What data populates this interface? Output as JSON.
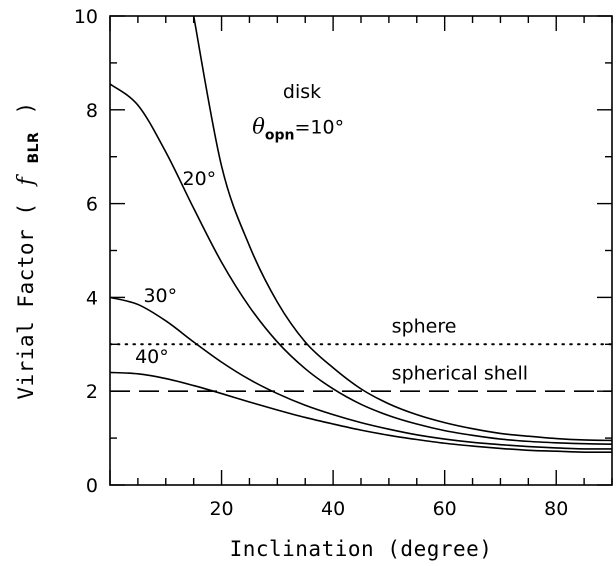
{
  "chart_data": {
    "type": "line",
    "xlabel": "Inclination (degree)",
    "ylabel": {
      "prefix": "Virial Factor (",
      "symbol": "f",
      "subscript": "BLR",
      "suffix": ")"
    },
    "xlim": [
      0,
      90
    ],
    "ylim": [
      0,
      10
    ],
    "xticks": [
      20,
      40,
      60,
      80
    ],
    "yticks": [
      0,
      2,
      4,
      6,
      8,
      10
    ],
    "grid": false,
    "series": [
      {
        "name": "disk",
        "opening_angle_deg": 10,
        "style": "solid",
        "x": [
          15,
          20,
          25,
          30,
          35,
          40,
          45,
          50,
          55,
          60,
          65,
          70,
          75,
          80,
          85,
          90
        ],
        "y": [
          10.0,
          6.8,
          5.1,
          3.9,
          3.05,
          2.5,
          2.05,
          1.73,
          1.5,
          1.33,
          1.2,
          1.1,
          1.04,
          0.99,
          0.96,
          0.95
        ]
      },
      {
        "name": "20°",
        "opening_angle_deg": 20,
        "style": "solid",
        "x": [
          0,
          5,
          10,
          15,
          20,
          25,
          30,
          35,
          40,
          45,
          50,
          55,
          60,
          65,
          70,
          75,
          80,
          85,
          90
        ],
        "y": [
          8.55,
          8.1,
          7.1,
          5.9,
          4.75,
          3.8,
          3.05,
          2.48,
          2.05,
          1.72,
          1.48,
          1.3,
          1.16,
          1.06,
          0.98,
          0.93,
          0.9,
          0.88,
          0.87
        ]
      },
      {
        "name": "30°",
        "opening_angle_deg": 30,
        "style": "solid",
        "x": [
          0,
          5,
          10,
          15,
          20,
          25,
          30,
          35,
          40,
          45,
          50,
          55,
          60,
          65,
          70,
          75,
          80,
          85,
          90
        ],
        "y": [
          4.0,
          3.85,
          3.5,
          3.05,
          2.62,
          2.25,
          1.95,
          1.7,
          1.5,
          1.33,
          1.19,
          1.07,
          0.98,
          0.91,
          0.86,
          0.82,
          0.79,
          0.77,
          0.77
        ]
      },
      {
        "name": "40°",
        "opening_angle_deg": 40,
        "style": "solid",
        "x": [
          0,
          5,
          10,
          15,
          20,
          25,
          30,
          35,
          40,
          45,
          50,
          55,
          60,
          65,
          70,
          75,
          80,
          85,
          90
        ],
        "y": [
          2.4,
          2.37,
          2.27,
          2.12,
          1.95,
          1.77,
          1.6,
          1.44,
          1.3,
          1.17,
          1.06,
          0.97,
          0.89,
          0.83,
          0.78,
          0.74,
          0.72,
          0.7,
          0.7
        ]
      },
      {
        "name": "sphere",
        "style": "dotted",
        "x": [
          0,
          90
        ],
        "y": [
          3,
          3
        ]
      },
      {
        "name": "spherical shell",
        "style": "dashed",
        "x": [
          0,
          90
        ],
        "y": [
          2,
          2
        ]
      }
    ],
    "annotations": [
      {
        "text": "disk",
        "x": 31,
        "y": 8.25
      },
      {
        "symbol": "θ",
        "subscript": "opn",
        "text": "=10°",
        "x": 25.5,
        "y": 7.5
      },
      {
        "text": "20°",
        "x": 13,
        "y": 6.4
      },
      {
        "text": "30°",
        "x": 6,
        "y": 3.9
      },
      {
        "text": "40°",
        "x": 4.5,
        "y": 2.6
      },
      {
        "text": "sphere",
        "x": 50.5,
        "y": 3.25
      },
      {
        "text": "spherical shell",
        "x": 50.5,
        "y": 2.25
      }
    ]
  }
}
